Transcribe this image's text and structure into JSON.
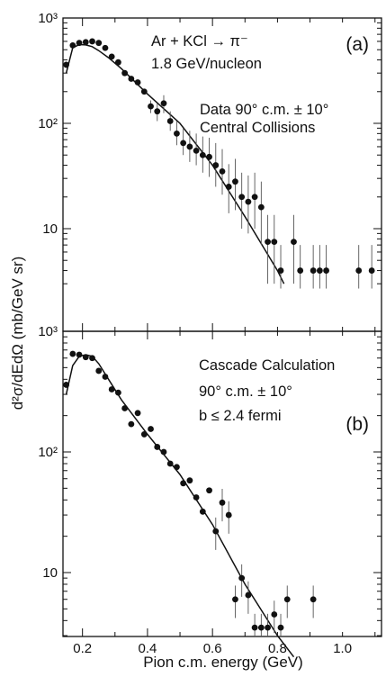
{
  "figure": {
    "ylabel": "d²σ/dEdΩ (mb/GeV sr)",
    "xlabel": "Pion c.m. energy (GeV)"
  },
  "chart_data": [
    {
      "type": "scatter",
      "panel_label": "(a)",
      "annotations": [
        "Ar + KCl → π⁻",
        "1.8 GeV/nucleon",
        "Data 90° c.m. ± 10°",
        "Central Collisions"
      ],
      "xlim": [
        0.14,
        1.12
      ],
      "ylim": [
        3,
        1000
      ],
      "yscale": "log",
      "y_tick_labels": [
        "10³",
        "10²",
        "10",
        "10³"
      ],
      "x_tick_labels": [],
      "grid": false,
      "series": [
        {
          "kind": "points_with_error_bars",
          "x": [
            0.15,
            0.17,
            0.19,
            0.21,
            0.23,
            0.25,
            0.27,
            0.29,
            0.31,
            0.33,
            0.35,
            0.37,
            0.39,
            0.41,
            0.43,
            0.45,
            0.47,
            0.49,
            0.51,
            0.53,
            0.55,
            0.57,
            0.59,
            0.61,
            0.63,
            0.65,
            0.67,
            0.69,
            0.71,
            0.73,
            0.75,
            0.77,
            0.79,
            0.81,
            0.85,
            0.87,
            0.91,
            0.93,
            0.95,
            1.05,
            1.09
          ],
          "y": [
            360,
            550,
            580,
            590,
            600,
            580,
            520,
            430,
            380,
            300,
            265,
            245,
            200,
            145,
            130,
            155,
            105,
            80,
            65,
            60,
            55,
            50,
            48,
            40,
            35,
            25,
            28,
            20,
            18,
            20,
            16,
            7.5,
            7.5,
            4,
            7.5,
            4,
            4,
            4,
            4,
            4,
            4
          ],
          "err_low": [
            0,
            0,
            0,
            0,
            0,
            0,
            0,
            0,
            0,
            0,
            0,
            0,
            0,
            20,
            25,
            30,
            20,
            18,
            15,
            17,
            15,
            16,
            17,
            15,
            14,
            11,
            13,
            10,
            9,
            10,
            9,
            4.5,
            4.5,
            2,
            4.5,
            2,
            2,
            2,
            2,
            2,
            2
          ],
          "err_high": [
            0,
            0,
            0,
            0,
            0,
            0,
            0,
            0,
            0,
            0,
            0,
            0,
            0,
            20,
            25,
            30,
            25,
            25,
            25,
            25,
            25,
            25,
            25,
            25,
            22,
            16,
            18,
            14,
            14,
            14,
            12,
            6,
            6,
            3,
            6,
            3,
            3,
            3,
            3,
            3,
            3
          ]
        },
        {
          "kind": "curve",
          "x": [
            0.15,
            0.17,
            0.19,
            0.21,
            0.23,
            0.25,
            0.28,
            0.32,
            0.4,
            0.5,
            0.6,
            0.7,
            0.8,
            0.82
          ],
          "y": [
            300,
            520,
            560,
            555,
            535,
            490,
            420,
            330,
            190,
            100,
            40,
            13,
            4,
            3
          ]
        }
      ]
    },
    {
      "type": "scatter",
      "panel_label": "(b)",
      "annotations": [
        "Cascade Calculation",
        "90° c.m. ± 10°",
        "b ≤ 2.4 fermi"
      ],
      "xlim": [
        0.14,
        1.12
      ],
      "ylim": [
        2,
        1000
      ],
      "yscale": "log",
      "y_tick_labels": [
        "10²",
        "10"
      ],
      "x_tick_labels": [
        "0.2",
        "0.4",
        "0.6",
        "0.8",
        "1.0"
      ],
      "grid": false,
      "series": [
        {
          "kind": "points_with_error_bars",
          "x": [
            0.15,
            0.17,
            0.19,
            0.21,
            0.23,
            0.25,
            0.27,
            0.29,
            0.31,
            0.33,
            0.35,
            0.37,
            0.39,
            0.41,
            0.43,
            0.45,
            0.47,
            0.49,
            0.51,
            0.53,
            0.55,
            0.57,
            0.59,
            0.61,
            0.63,
            0.65,
            0.67,
            0.69,
            0.71,
            0.73,
            0.75,
            0.77,
            0.79,
            0.81,
            0.83,
            0.91
          ],
          "y": [
            360,
            650,
            640,
            610,
            600,
            470,
            420,
            330,
            310,
            230,
            170,
            210,
            140,
            155,
            110,
            100,
            80,
            75,
            55,
            58,
            42,
            32,
            48,
            22,
            38,
            30,
            6,
            9,
            6.5,
            3.5,
            3.5,
            3.5,
            4.5,
            3.5,
            6,
            6
          ]
        },
        {
          "kind": "curve",
          "x": [
            0.15,
            0.17,
            0.19,
            0.21,
            0.23,
            0.25,
            0.28,
            0.32,
            0.4,
            0.5,
            0.6,
            0.7,
            0.8,
            0.85
          ],
          "y": [
            300,
            520,
            620,
            640,
            620,
            540,
            400,
            270,
            140,
            65,
            25,
            8,
            3,
            2
          ]
        }
      ]
    }
  ]
}
